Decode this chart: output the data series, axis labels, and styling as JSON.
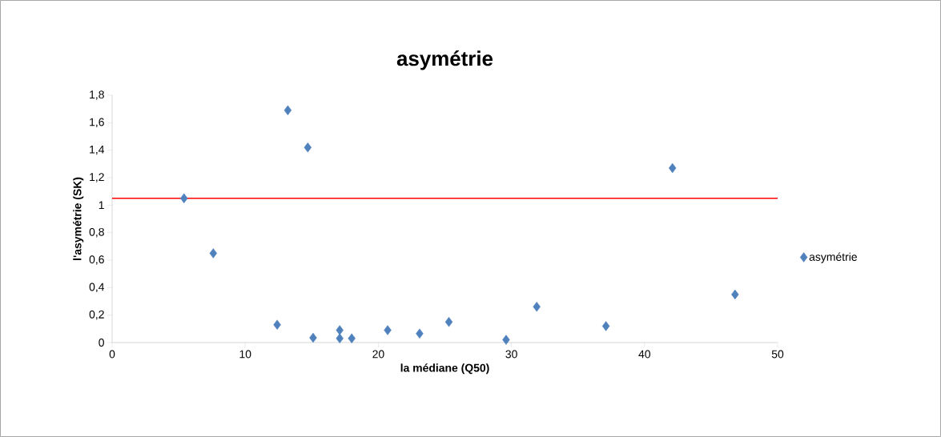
{
  "chart_data": {
    "type": "scatter",
    "title": "asymétrie",
    "xlabel": "la médiane (Q50)",
    "ylabel": "l'asymétrie (SK)",
    "x": [
      5.4,
      7.6,
      12.4,
      13.2,
      14.7,
      15.1,
      17.1,
      17.1,
      18.0,
      20.7,
      23.1,
      25.3,
      29.6,
      31.9,
      37.1,
      42.1,
      46.8
    ],
    "series": [
      {
        "name": "asymétrie",
        "color": "#4f81bd",
        "values": [
          1.05,
          0.65,
          0.13,
          1.69,
          1.42,
          0.035,
          0.09,
          0.03,
          0.03,
          0.09,
          0.065,
          0.15,
          0.02,
          0.26,
          0.12,
          1.27,
          0.35
        ]
      }
    ],
    "xlim": [
      0,
      50
    ],
    "xticks": [
      0,
      10,
      20,
      30,
      40,
      50
    ],
    "ylim": [
      0,
      1.8
    ],
    "yticks": [
      0,
      {
        "value": 0.2,
        "label": "0,2"
      },
      {
        "value": 0.4,
        "label": "0,4"
      },
      {
        "value": 0.6,
        "label": "0,6"
      },
      {
        "value": 0.8,
        "label": "0,8"
      },
      1,
      {
        "value": 1.2,
        "label": "1,2"
      },
      {
        "value": 1.4,
        "label": "1,4"
      },
      {
        "value": 1.6,
        "label": "1,6"
      },
      {
        "value": 1.8,
        "label": "1,8"
      }
    ],
    "ref_lines": [
      {
        "axis": "y",
        "value": 1.05,
        "color": "#ff0000"
      }
    ],
    "marker": "diamond",
    "legend": "right",
    "grid": false
  }
}
